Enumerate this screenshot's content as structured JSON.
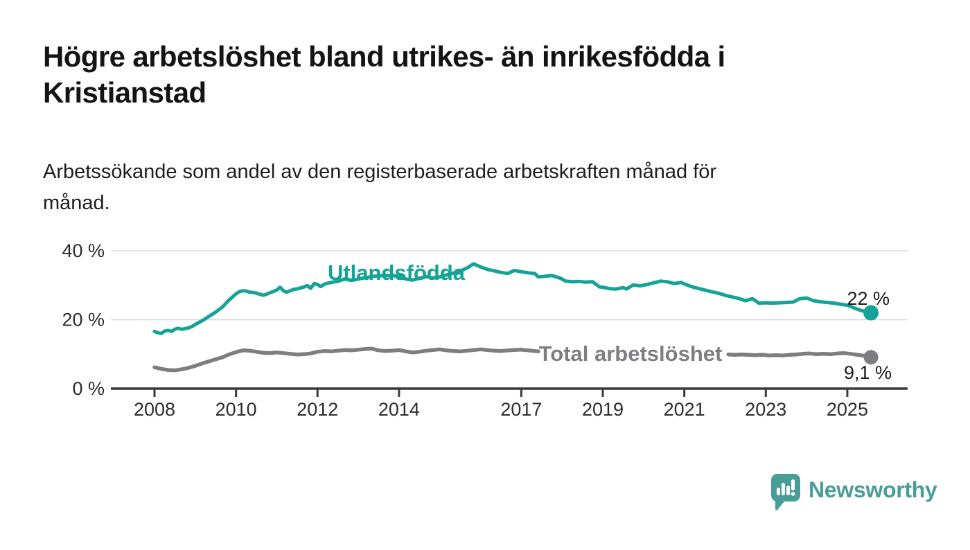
{
  "header": {
    "title": "Högre arbetslöshet bland utrikes- än inrikesfödda i Kristianstad",
    "subtitle": "Arbetssökande som andel av den registerbaserade arbetskraften månad för månad."
  },
  "footer": {
    "brand_name": "Newsworthy",
    "logo_icon": "speech-bubble-bar-chart-icon"
  },
  "colors": {
    "series_utlandsfodda": "#14a396",
    "series_total": "#7e7e82",
    "axis": "#3a3a3a",
    "grid": "#d9d9d9",
    "text": "#1a1a1a",
    "tick_text": "#2d2d2d",
    "logo": "#489e97"
  },
  "chart_data": {
    "type": "line",
    "x_unit": "decimal_year",
    "xlabel": "",
    "ylabel": "",
    "xlim": [
      2006.93,
      2026.48
    ],
    "ylim": [
      0,
      40
    ],
    "x_ticks": [
      2008,
      2010,
      2012,
      2014,
      2017,
      2019,
      2021,
      2023,
      2025
    ],
    "y_ticks": [
      {
        "value": 0,
        "label": "0 %"
      },
      {
        "value": 20,
        "label": "20 %"
      },
      {
        "value": 40,
        "label": "40 %"
      }
    ],
    "grid": "horizontal",
    "legend": "inline-labels",
    "series": [
      {
        "name": "Utlandsfödda",
        "color_key": "series_utlandsfodda",
        "end_label": "22 %",
        "end_value": 22,
        "segments": [
          [
            [
              2008.0,
              16.6
            ],
            [
              2008.08,
              16.2
            ],
            [
              2008.17,
              16.0
            ],
            [
              2008.25,
              16.7
            ],
            [
              2008.33,
              16.9
            ],
            [
              2008.42,
              16.6
            ],
            [
              2008.5,
              17.2
            ],
            [
              2008.58,
              17.5
            ],
            [
              2008.67,
              17.2
            ],
            [
              2008.75,
              17.4
            ],
            [
              2008.83,
              17.6
            ],
            [
              2008.92,
              18.0
            ],
            [
              2009.0,
              18.6
            ],
            [
              2009.17,
              19.7
            ],
            [
              2009.33,
              20.9
            ],
            [
              2009.5,
              22.2
            ],
            [
              2009.67,
              23.7
            ],
            [
              2009.83,
              25.7
            ],
            [
              2010.0,
              27.5
            ],
            [
              2010.08,
              28.1
            ],
            [
              2010.17,
              28.4
            ],
            [
              2010.25,
              28.3
            ],
            [
              2010.33,
              28.0
            ],
            [
              2010.42,
              27.9
            ],
            [
              2010.5,
              27.7
            ],
            [
              2010.58,
              27.4
            ],
            [
              2010.67,
              27.1
            ],
            [
              2010.75,
              27.4
            ],
            [
              2010.83,
              27.8
            ],
            [
              2010.92,
              28.2
            ],
            [
              2011.0,
              28.6
            ],
            [
              2011.08,
              29.4
            ],
            [
              2011.17,
              28.3
            ],
            [
              2011.25,
              28.0
            ],
            [
              2011.33,
              28.4
            ],
            [
              2011.42,
              28.8
            ],
            [
              2011.5,
              28.9
            ],
            [
              2011.58,
              29.2
            ],
            [
              2011.67,
              29.5
            ],
            [
              2011.75,
              29.9
            ],
            [
              2011.83,
              29.1
            ],
            [
              2011.92,
              30.5
            ],
            [
              2012.0,
              30.2
            ],
            [
              2012.08,
              29.6
            ],
            [
              2012.17,
              30.3
            ],
            [
              2012.25,
              30.6
            ],
            [
              2012.33,
              30.8
            ],
            [
              2012.42,
              31.0
            ],
            [
              2012.5,
              31.1
            ],
            [
              2012.58,
              31.5
            ],
            [
              2012.67,
              31.8
            ],
            [
              2012.75,
              31.6
            ],
            [
              2012.83,
              31.4
            ],
            [
              2012.92,
              31.6
            ],
            [
              2013.0,
              31.8
            ],
            [
              2013.17,
              32.2
            ],
            [
              2013.33,
              32.5
            ],
            [
              2013.5,
              32.7
            ],
            [
              2013.67,
              32.8
            ],
            [
              2013.83,
              32.8
            ],
            [
              2014.0,
              32.6
            ],
            [
              2014.17,
              31.8
            ],
            [
              2014.33,
              31.5
            ],
            [
              2014.5,
              32.0
            ],
            [
              2014.67,
              32.5
            ],
            [
              2014.83,
              32.1
            ],
            [
              2015.0,
              32.4
            ],
            [
              2015.17,
              33.0
            ],
            [
              2015.33,
              33.5
            ],
            [
              2015.5,
              34.1
            ],
            [
              2015.67,
              35.0
            ],
            [
              2015.83,
              36.2
            ],
            [
              2016.0,
              35.3
            ],
            [
              2016.17,
              34.6
            ],
            [
              2016.33,
              34.2
            ],
            [
              2016.5,
              33.7
            ],
            [
              2016.67,
              33.4
            ],
            [
              2016.83,
              34.3
            ],
            [
              2017.0,
              33.9
            ],
            [
              2017.17,
              33.6
            ],
            [
              2017.33,
              33.4
            ],
            [
              2017.42,
              32.4
            ],
            [
              2017.58,
              32.6
            ],
            [
              2017.75,
              32.8
            ],
            [
              2017.92,
              32.2
            ],
            [
              2018.0,
              31.8
            ],
            [
              2018.08,
              31.2
            ],
            [
              2018.25,
              31.0
            ],
            [
              2018.42,
              31.1
            ],
            [
              2018.58,
              30.9
            ],
            [
              2018.75,
              31.0
            ],
            [
              2018.92,
              29.5
            ],
            [
              2019.0,
              29.4
            ],
            [
              2019.17,
              29.0
            ],
            [
              2019.33,
              28.9
            ],
            [
              2019.5,
              29.3
            ],
            [
              2019.58,
              28.9
            ],
            [
              2019.75,
              30.1
            ],
            [
              2019.92,
              29.8
            ],
            [
              2020.08,
              30.2
            ],
            [
              2020.25,
              30.7
            ],
            [
              2020.42,
              31.2
            ],
            [
              2020.58,
              31.0
            ],
            [
              2020.75,
              30.5
            ],
            [
              2020.92,
              30.8
            ],
            [
              2021.0,
              30.4
            ],
            [
              2021.17,
              29.6
            ],
            [
              2021.33,
              29.1
            ],
            [
              2021.5,
              28.6
            ],
            [
              2021.67,
              28.1
            ],
            [
              2021.83,
              27.7
            ],
            [
              2022.0,
              27.1
            ],
            [
              2022.17,
              26.6
            ],
            [
              2022.33,
              26.2
            ],
            [
              2022.5,
              25.5
            ],
            [
              2022.67,
              26.1
            ],
            [
              2022.83,
              24.8
            ],
            [
              2023.0,
              24.9
            ],
            [
              2023.17,
              24.8
            ],
            [
              2023.33,
              24.9
            ],
            [
              2023.5,
              25.0
            ],
            [
              2023.67,
              25.1
            ],
            [
              2023.83,
              26.1
            ],
            [
              2024.0,
              26.3
            ],
            [
              2024.17,
              25.5
            ],
            [
              2024.33,
              25.2
            ],
            [
              2024.5,
              25.0
            ],
            [
              2024.67,
              24.8
            ],
            [
              2024.83,
              24.5
            ],
            [
              2025.0,
              24.2
            ],
            [
              2025.17,
              23.4
            ],
            [
              2025.33,
              22.7
            ],
            [
              2025.5,
              22.2
            ],
            [
              2025.58,
              22.0
            ]
          ]
        ]
      },
      {
        "name": "Total arbetslöshet",
        "color_key": "series_total",
        "end_label": "9,1 %",
        "end_value": 9.1,
        "segments": [
          [
            [
              2008.0,
              6.2
            ],
            [
              2008.17,
              5.7
            ],
            [
              2008.33,
              5.4
            ],
            [
              2008.5,
              5.3
            ],
            [
              2008.67,
              5.6
            ],
            [
              2008.83,
              6.0
            ],
            [
              2009.0,
              6.6
            ],
            [
              2009.17,
              7.3
            ],
            [
              2009.33,
              7.9
            ],
            [
              2009.5,
              8.5
            ],
            [
              2009.67,
              9.1
            ],
            [
              2009.83,
              9.9
            ],
            [
              2010.0,
              10.6
            ],
            [
              2010.17,
              11.1
            ],
            [
              2010.33,
              11.0
            ],
            [
              2010.5,
              10.7
            ],
            [
              2010.67,
              10.4
            ],
            [
              2010.83,
              10.3
            ],
            [
              2011.0,
              10.5
            ],
            [
              2011.17,
              10.3
            ],
            [
              2011.33,
              10.1
            ],
            [
              2011.5,
              9.9
            ],
            [
              2011.67,
              10.0
            ],
            [
              2011.83,
              10.2
            ],
            [
              2012.0,
              10.7
            ],
            [
              2012.17,
              10.9
            ],
            [
              2012.33,
              10.8
            ],
            [
              2012.5,
              11.0
            ],
            [
              2012.67,
              11.2
            ],
            [
              2012.83,
              11.1
            ],
            [
              2013.0,
              11.3
            ],
            [
              2013.17,
              11.5
            ],
            [
              2013.33,
              11.6
            ],
            [
              2013.5,
              11.1
            ],
            [
              2013.67,
              10.9
            ],
            [
              2013.83,
              11.0
            ],
            [
              2014.0,
              11.2
            ],
            [
              2014.17,
              10.8
            ],
            [
              2014.33,
              10.5
            ],
            [
              2014.5,
              10.7
            ],
            [
              2014.67,
              11.0
            ],
            [
              2014.83,
              11.2
            ],
            [
              2015.0,
              11.4
            ],
            [
              2015.17,
              11.1
            ],
            [
              2015.33,
              10.9
            ],
            [
              2015.5,
              10.8
            ],
            [
              2015.67,
              11.0
            ],
            [
              2015.83,
              11.2
            ],
            [
              2016.0,
              11.4
            ],
            [
              2016.17,
              11.2
            ],
            [
              2016.33,
              11.0
            ],
            [
              2016.5,
              10.9
            ],
            [
              2016.67,
              11.1
            ],
            [
              2016.83,
              11.2
            ],
            [
              2017.0,
              11.3
            ],
            [
              2017.17,
              11.1
            ],
            [
              2017.33,
              10.9
            ],
            [
              2017.42,
              10.8
            ]
          ],
          [
            [
              2022.08,
              9.9
            ],
            [
              2022.25,
              9.8
            ],
            [
              2022.42,
              9.9
            ],
            [
              2022.58,
              9.8
            ],
            [
              2022.75,
              9.7
            ],
            [
              2022.92,
              9.8
            ],
            [
              2023.08,
              9.6
            ],
            [
              2023.25,
              9.7
            ],
            [
              2023.42,
              9.6
            ],
            [
              2023.58,
              9.8
            ],
            [
              2023.75,
              9.9
            ],
            [
              2023.92,
              10.1
            ],
            [
              2024.08,
              10.2
            ],
            [
              2024.25,
              10.0
            ],
            [
              2024.42,
              10.1
            ],
            [
              2024.58,
              10.0
            ],
            [
              2024.75,
              10.2
            ],
            [
              2024.92,
              10.3
            ],
            [
              2025.08,
              10.1
            ],
            [
              2025.25,
              9.8
            ],
            [
              2025.42,
              9.5
            ],
            [
              2025.58,
              9.1
            ]
          ]
        ]
      }
    ]
  }
}
